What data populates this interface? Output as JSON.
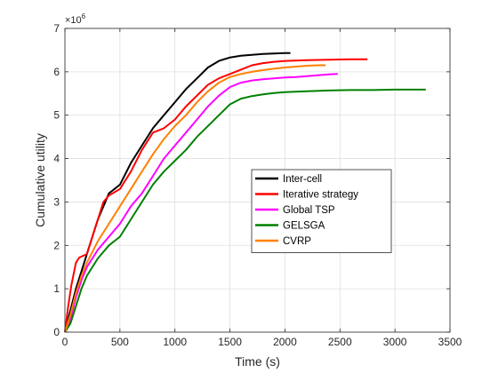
{
  "chart_data": {
    "type": "line",
    "xlabel": "Time (s)",
    "ylabel": "Cumulative utility",
    "y_multiplier": "×10",
    "y_multiplier_exp": "6",
    "xlim": [
      0,
      3500
    ],
    "ylim": [
      0,
      7
    ],
    "xticks": [
      0,
      500,
      1000,
      1500,
      2000,
      2500,
      3000,
      3500
    ],
    "yticks": [
      0,
      1,
      2,
      3,
      4,
      5,
      6,
      7
    ],
    "grid": true,
    "legend_position": "center-right",
    "series": [
      {
        "name": "Inter-cell",
        "color": "#000000",
        "x": [
          0,
          30,
          60,
          100,
          150,
          200,
          250,
          300,
          350,
          400,
          450,
          500,
          600,
          700,
          800,
          900,
          1000,
          1100,
          1200,
          1300,
          1400,
          1500,
          1600,
          1700,
          1800,
          1900,
          2000,
          2050
        ],
        "y": [
          0,
          0.3,
          0.6,
          1.0,
          1.4,
          1.8,
          2.2,
          2.6,
          2.9,
          3.2,
          3.3,
          3.4,
          3.9,
          4.3,
          4.7,
          5.0,
          5.3,
          5.6,
          5.85,
          6.1,
          6.25,
          6.33,
          6.37,
          6.39,
          6.41,
          6.42,
          6.43,
          6.43
        ]
      },
      {
        "name": "Iterative strategy",
        "color": "#ff0000",
        "x": [
          0,
          30,
          60,
          100,
          130,
          200,
          250,
          300,
          350,
          400,
          500,
          600,
          700,
          800,
          900,
          1000,
          1100,
          1200,
          1300,
          1400,
          1500,
          1600,
          1700,
          1800,
          1900,
          2000,
          2200,
          2400,
          2600,
          2750
        ],
        "y": [
          0,
          0.6,
          1.1,
          1.6,
          1.72,
          1.8,
          2.2,
          2.6,
          3.0,
          3.15,
          3.3,
          3.7,
          4.2,
          4.6,
          4.7,
          4.9,
          5.2,
          5.45,
          5.7,
          5.85,
          5.95,
          6.05,
          6.15,
          6.2,
          6.23,
          6.25,
          6.27,
          6.28,
          6.29,
          6.29
        ]
      },
      {
        "name": "Global TSP",
        "color": "#ff00ff",
        "x": [
          0,
          50,
          100,
          150,
          200,
          300,
          400,
          500,
          600,
          700,
          800,
          900,
          1000,
          1100,
          1200,
          1300,
          1400,
          1500,
          1600,
          1700,
          1800,
          1900,
          2000,
          2100,
          2200,
          2300,
          2400,
          2480
        ],
        "y": [
          0,
          0.3,
          0.8,
          1.2,
          1.5,
          1.9,
          2.2,
          2.5,
          2.9,
          3.2,
          3.6,
          4.0,
          4.3,
          4.6,
          4.9,
          5.2,
          5.45,
          5.65,
          5.75,
          5.8,
          5.83,
          5.85,
          5.87,
          5.88,
          5.9,
          5.92,
          5.94,
          5.95
        ]
      },
      {
        "name": "GELSGA",
        "color": "#008000",
        "x": [
          0,
          50,
          100,
          150,
          200,
          300,
          400,
          500,
          600,
          700,
          800,
          900,
          1000,
          1100,
          1200,
          1300,
          1400,
          1500,
          1600,
          1700,
          1800,
          1900,
          2000,
          2200,
          2400,
          2600,
          2800,
          3000,
          3200,
          3280
        ],
        "y": [
          0,
          0.2,
          0.6,
          1.0,
          1.3,
          1.7,
          2.0,
          2.2,
          2.6,
          3.0,
          3.4,
          3.7,
          3.95,
          4.2,
          4.5,
          4.75,
          5.0,
          5.25,
          5.38,
          5.44,
          5.48,
          5.51,
          5.53,
          5.55,
          5.57,
          5.58,
          5.58,
          5.59,
          5.59,
          5.59
        ]
      },
      {
        "name": "CVRP",
        "color": "#ff8000",
        "x": [
          0,
          50,
          100,
          150,
          200,
          300,
          400,
          500,
          600,
          700,
          800,
          900,
          1000,
          1100,
          1200,
          1300,
          1400,
          1500,
          1600,
          1700,
          1800,
          1900,
          2000,
          2100,
          2200,
          2300,
          2370
        ],
        "y": [
          0,
          0.4,
          0.9,
          1.3,
          1.6,
          2.1,
          2.5,
          2.9,
          3.3,
          3.7,
          4.1,
          4.45,
          4.75,
          5.0,
          5.3,
          5.55,
          5.75,
          5.88,
          5.95,
          6.0,
          6.04,
          6.07,
          6.1,
          6.12,
          6.14,
          6.15,
          6.15
        ]
      }
    ]
  }
}
